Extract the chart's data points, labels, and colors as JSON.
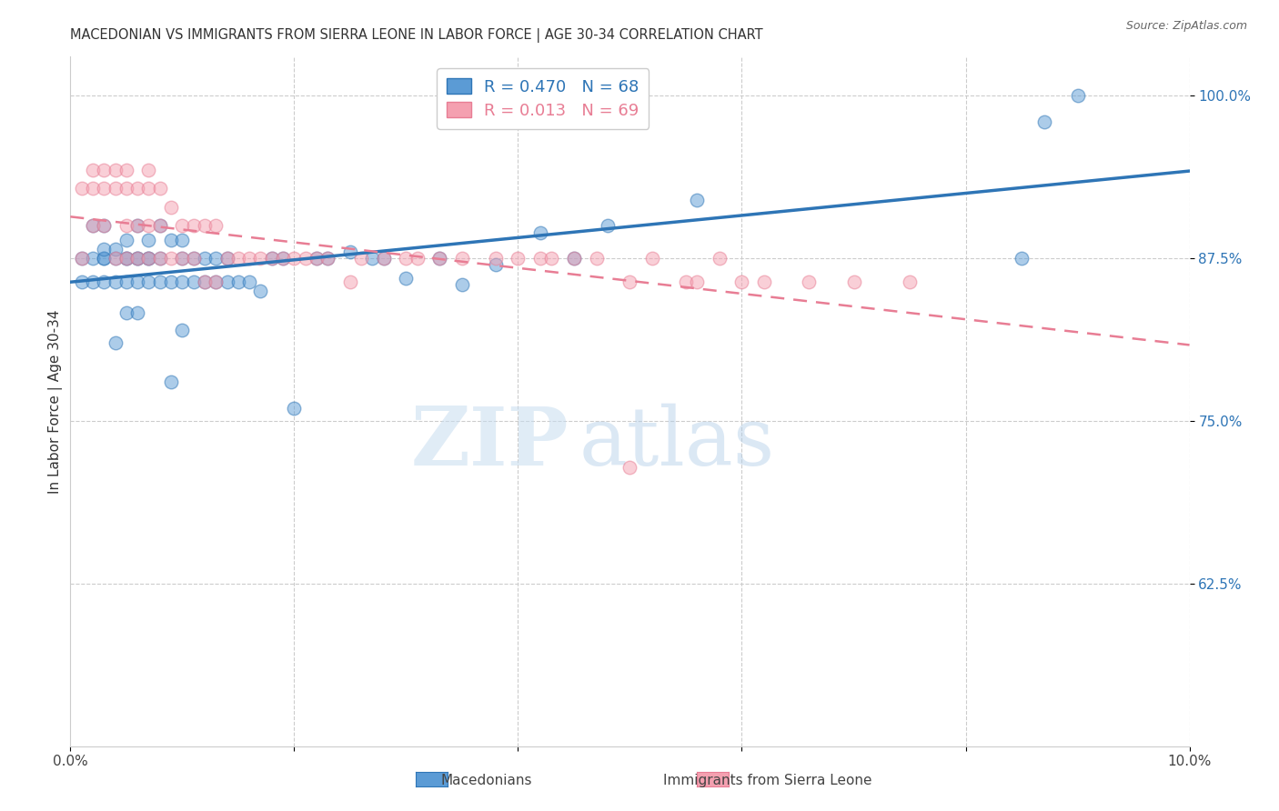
{
  "title": "MACEDONIAN VS IMMIGRANTS FROM SIERRA LEONE IN LABOR FORCE | AGE 30-34 CORRELATION CHART",
  "source": "Source: ZipAtlas.com",
  "ylabel": "In Labor Force | Age 30-34",
  "xlim": [
    0.0,
    0.1
  ],
  "ylim": [
    0.5,
    1.03
  ],
  "yticks": [
    0.625,
    0.75,
    0.875,
    1.0
  ],
  "ytick_labels": [
    "62.5%",
    "75.0%",
    "87.5%",
    "100.0%"
  ],
  "xticks": [
    0.0,
    0.02,
    0.04,
    0.06,
    0.08,
    0.1
  ],
  "xtick_labels": [
    "0.0%",
    "",
    "",
    "",
    "",
    "10.0%"
  ],
  "macedonian_R": 0.47,
  "macedonian_N": 68,
  "sierra_leone_R": 0.013,
  "sierra_leone_N": 69,
  "blue_color": "#5B9BD5",
  "pink_color": "#F4A0B0",
  "blue_line_color": "#2E75B6",
  "pink_line_color": "#E87D94",
  "watermark_zip": "ZIP",
  "watermark_atlas": "atlas",
  "macedonian_x": [
    0.001,
    0.001,
    0.002,
    0.002,
    0.002,
    0.003,
    0.003,
    0.003,
    0.003,
    0.003,
    0.004,
    0.004,
    0.004,
    0.004,
    0.005,
    0.005,
    0.005,
    0.005,
    0.005,
    0.006,
    0.006,
    0.006,
    0.006,
    0.006,
    0.007,
    0.007,
    0.007,
    0.007,
    0.008,
    0.008,
    0.008,
    0.009,
    0.009,
    0.009,
    0.01,
    0.01,
    0.01,
    0.01,
    0.011,
    0.011,
    0.012,
    0.012,
    0.013,
    0.013,
    0.014,
    0.014,
    0.015,
    0.016,
    0.017,
    0.018,
    0.019,
    0.02,
    0.022,
    0.023,
    0.025,
    0.027,
    0.028,
    0.03,
    0.033,
    0.035,
    0.038,
    0.042,
    0.045,
    0.048,
    0.056,
    0.085,
    0.087,
    0.09
  ],
  "macedonian_y": [
    0.875,
    0.857,
    0.9,
    0.875,
    0.857,
    0.875,
    0.875,
    0.882,
    0.857,
    0.9,
    0.857,
    0.875,
    0.882,
    0.81,
    0.833,
    0.857,
    0.875,
    0.875,
    0.889,
    0.833,
    0.857,
    0.875,
    0.875,
    0.9,
    0.857,
    0.875,
    0.875,
    0.889,
    0.857,
    0.875,
    0.9,
    0.78,
    0.857,
    0.889,
    0.82,
    0.857,
    0.875,
    0.889,
    0.857,
    0.875,
    0.857,
    0.875,
    0.857,
    0.875,
    0.857,
    0.875,
    0.857,
    0.857,
    0.85,
    0.875,
    0.875,
    0.76,
    0.875,
    0.875,
    0.88,
    0.875,
    0.875,
    0.86,
    0.875,
    0.855,
    0.87,
    0.895,
    0.875,
    0.9,
    0.92,
    0.875,
    0.98,
    1.0
  ],
  "sierra_leone_x": [
    0.001,
    0.001,
    0.002,
    0.002,
    0.002,
    0.003,
    0.003,
    0.003,
    0.004,
    0.004,
    0.004,
    0.005,
    0.005,
    0.005,
    0.005,
    0.006,
    0.006,
    0.006,
    0.007,
    0.007,
    0.007,
    0.007,
    0.008,
    0.008,
    0.008,
    0.009,
    0.009,
    0.01,
    0.01,
    0.011,
    0.011,
    0.012,
    0.012,
    0.013,
    0.013,
    0.014,
    0.015,
    0.016,
    0.017,
    0.018,
    0.019,
    0.02,
    0.021,
    0.022,
    0.023,
    0.025,
    0.026,
    0.028,
    0.03,
    0.031,
    0.033,
    0.035,
    0.038,
    0.04,
    0.042,
    0.043,
    0.045,
    0.047,
    0.05,
    0.052,
    0.055,
    0.056,
    0.058,
    0.06,
    0.062,
    0.066,
    0.07,
    0.075,
    0.05
  ],
  "sierra_leone_y": [
    0.875,
    0.929,
    0.9,
    0.929,
    0.943,
    0.9,
    0.929,
    0.943,
    0.875,
    0.929,
    0.943,
    0.875,
    0.9,
    0.929,
    0.943,
    0.875,
    0.9,
    0.929,
    0.875,
    0.9,
    0.929,
    0.943,
    0.875,
    0.9,
    0.929,
    0.875,
    0.914,
    0.875,
    0.9,
    0.875,
    0.9,
    0.857,
    0.9,
    0.857,
    0.9,
    0.875,
    0.875,
    0.875,
    0.875,
    0.875,
    0.875,
    0.875,
    0.875,
    0.875,
    0.875,
    0.857,
    0.875,
    0.875,
    0.875,
    0.875,
    0.875,
    0.875,
    0.875,
    0.875,
    0.875,
    0.875,
    0.875,
    0.875,
    0.857,
    0.875,
    0.857,
    0.857,
    0.875,
    0.857,
    0.857,
    0.857,
    0.857,
    0.857,
    0.714
  ]
}
